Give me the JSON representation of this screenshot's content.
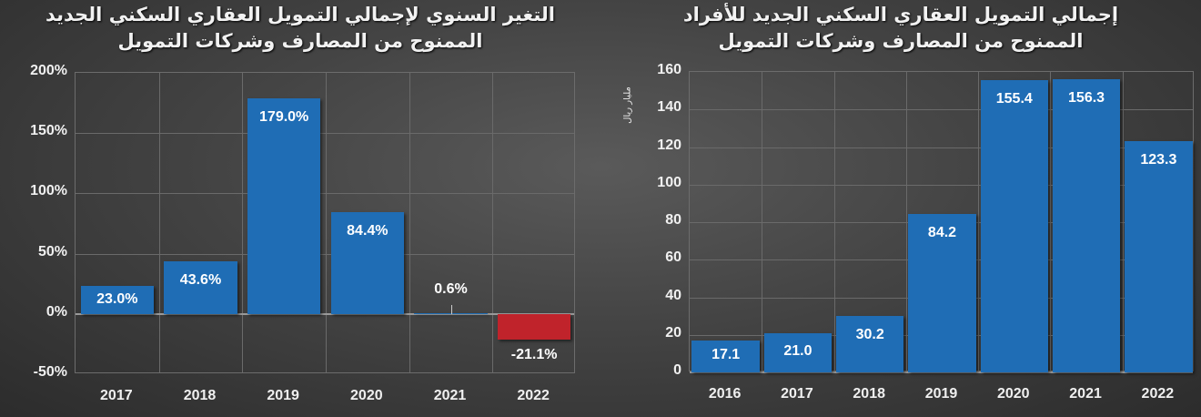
{
  "colors": {
    "positive_bar": "#1f6db5",
    "negative_bar": "#c0232b",
    "background": "#444444",
    "grid": "#6a6a6a"
  },
  "chart_data": [
    {
      "type": "bar",
      "title": "التغير السنوي لإجمالي التمويل العقاري السكني الجديد الممنوح من المصارف وشركات التمويل",
      "title_lines": [
        "التغير السنوي لإجمالي التمويل العقاري السكني الجديد",
        "الممنوح من المصارف وشركات التمويل"
      ],
      "categories": [
        "2017",
        "2018",
        "2019",
        "2020",
        "2021",
        "2022"
      ],
      "values": [
        23.0,
        43.6,
        179.0,
        84.4,
        0.6,
        -21.1
      ],
      "data_labels": [
        "23.0%",
        "43.6%",
        "179.0%",
        "84.4%",
        "0.6%",
        "-21.1%"
      ],
      "xlabel": "",
      "ylabel": "",
      "ylim": [
        -50,
        200
      ],
      "yticks": [
        "200%",
        "150%",
        "100%",
        "50%",
        "0%",
        "-50%"
      ],
      "grid": true,
      "legend": "none"
    },
    {
      "type": "bar",
      "title": "إجمالي التمويل العقاري السكني الجديد للأفراد الممنوح من المصارف وشركات التمويل",
      "title_lines": [
        "إجمالي التمويل العقاري السكني الجديد للأفراد",
        "الممنوح من المصارف وشركات التمويل"
      ],
      "categories": [
        "2016",
        "2017",
        "2018",
        "2019",
        "2020",
        "2021",
        "2022"
      ],
      "values": [
        17.1,
        21.0,
        30.2,
        84.2,
        155.4,
        156.3,
        123.3
      ],
      "data_labels": [
        "17.1",
        "21.0",
        "30.2",
        "84.2",
        "155.4",
        "156.3",
        "123.3"
      ],
      "xlabel": "",
      "ylabel": "مليار ريال",
      "ylim": [
        0,
        160
      ],
      "yticks": [
        "160",
        "140",
        "120",
        "100",
        "80",
        "60",
        "40",
        "20",
        "0"
      ],
      "grid": true,
      "legend": "none"
    }
  ]
}
